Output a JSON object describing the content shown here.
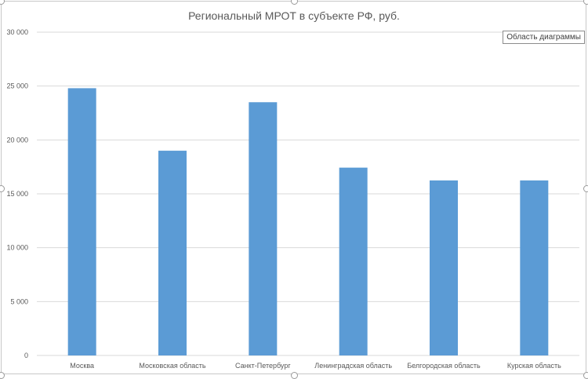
{
  "chart_data": {
    "type": "bar",
    "title": "Региональный МРОТ в субъекте РФ, руб.",
    "categories": [
      "Москва",
      "Московская область",
      "Санкт-Петербург",
      "Ленинградская область",
      "Белгородская область",
      "Курская область"
    ],
    "values": [
      24801,
      19000,
      23500,
      17430,
      16242,
      16242
    ],
    "ylim": [
      0,
      30000
    ],
    "ytick_values": [
      0,
      5000,
      10000,
      15000,
      20000,
      25000,
      30000
    ],
    "ytick_labels": [
      "0",
      "5 000",
      "10 000",
      "15 000",
      "20 000",
      "25 000",
      "30 000"
    ],
    "xlabel": "",
    "ylabel": "",
    "grid": true,
    "bar_color": "#5b9bd5"
  },
  "tooltip": {
    "label": "Область диаграммы"
  }
}
